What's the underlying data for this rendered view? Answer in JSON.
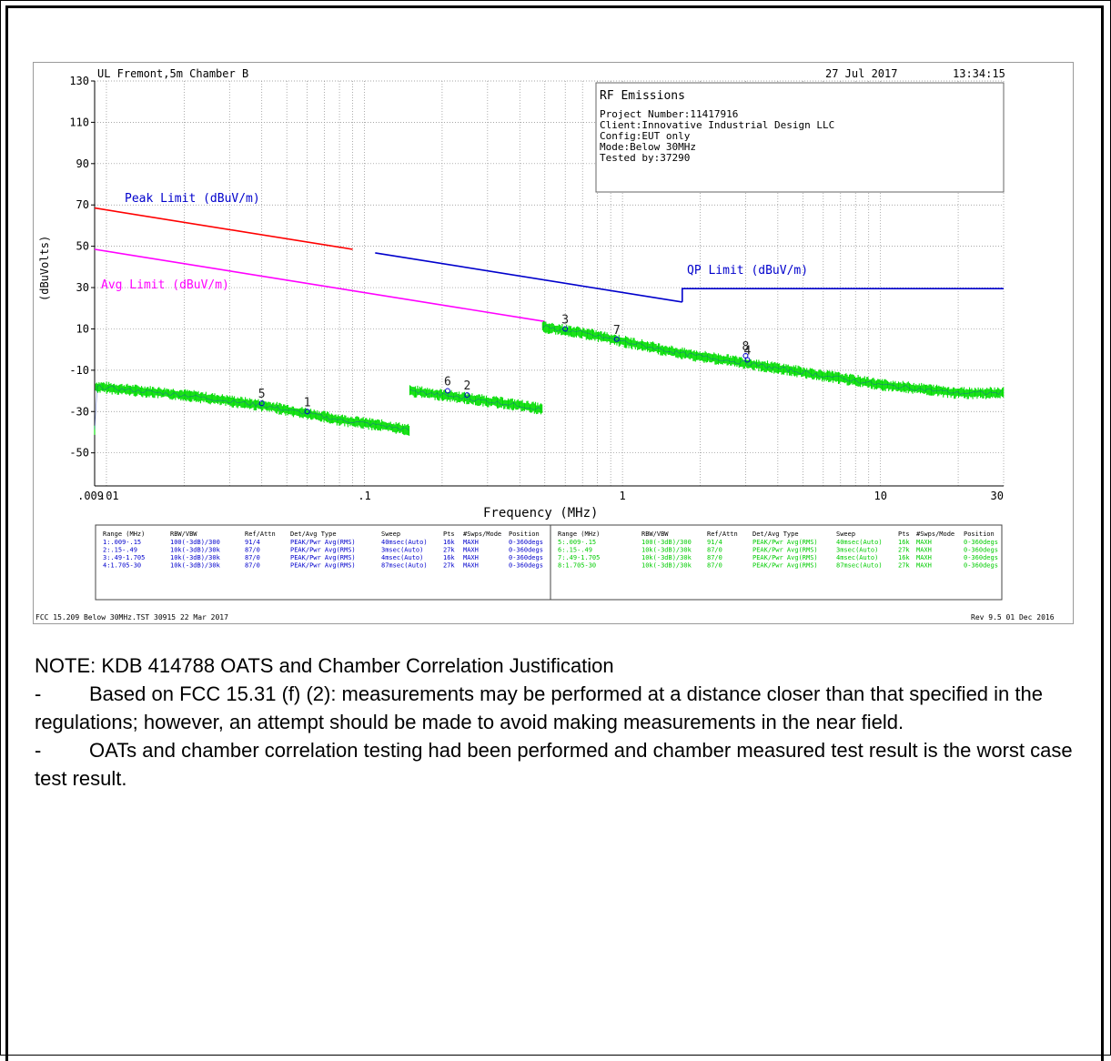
{
  "header": {
    "site": "UL Fremont,5m Chamber B",
    "date": "27 Jul 2017",
    "time": "13:34:15"
  },
  "info_box": {
    "title": "RF Emissions",
    "lines": [
      "Project Number:11417916",
      "Client:Innovative Industrial Design LLC",
      "Config:EUT only",
      "Mode:Below 30MHz",
      "Tested by:37290"
    ]
  },
  "footer": {
    "left": "FCC 15.209 Below 30MHz.TST 30915 22 Mar 2017",
    "right": "Rev 9.5 01 Dec 2016"
  },
  "chart_data": {
    "type": "line",
    "xlabel": "Frequency (MHz)",
    "ylabel": "(dBuVolts)",
    "x_scale": "log",
    "xlim": [
      0.009,
      30
    ],
    "ylim": [
      -66,
      130
    ],
    "grid": true,
    "x_ticks": [
      {
        "value": 0.009,
        "label": ".009"
      },
      {
        "value": 0.01,
        "label": ".01"
      },
      {
        "value": 0.1,
        "label": ".1"
      },
      {
        "value": 1,
        "label": "1"
      },
      {
        "value": 10,
        "label": "10"
      },
      {
        "value": 30,
        "label": "30"
      }
    ],
    "y_ticks": [
      130,
      110,
      90,
      70,
      50,
      30,
      10,
      -10,
      -30,
      -50
    ],
    "limit_lines": [
      {
        "name": "Peak Limit (dBuV/m)",
        "color": "#ff0000",
        "x": [
          0.009,
          0.09
        ],
        "y": [
          68.5,
          48.5
        ]
      },
      {
        "name": "Avg Limit (dBuV/m)",
        "color": "#ff00ff",
        "x": [
          0.009,
          0.5
        ],
        "y": [
          48.5,
          13.6
        ]
      },
      {
        "name": "",
        "color": "#0000cc",
        "x": [
          0.11,
          1.705
        ],
        "y": [
          46.8,
          23.0
        ]
      },
      {
        "name": "QP Limit (dBuV/m)",
        "color": "#0000cc",
        "x": [
          1.705,
          1.705,
          30
        ],
        "y": [
          23.0,
          29.5,
          29.5
        ]
      }
    ],
    "traces": [
      {
        "color": "#00dd00",
        "x": [
          0.009,
          0.02,
          0.04,
          0.06,
          0.08,
          0.12,
          0.15
        ],
        "y": [
          -18,
          -22,
          -27,
          -31,
          -34,
          -37,
          -39
        ]
      },
      {
        "color": "#00dd00",
        "x": [
          0.15,
          0.2,
          0.3,
          0.4,
          0.49
        ],
        "y": [
          -20,
          -22,
          -25,
          -27,
          -29
        ]
      },
      {
        "color": "#00dd00",
        "x": [
          0.49,
          0.7,
          1,
          1.705,
          2.5,
          5,
          10,
          20,
          30
        ],
        "y": [
          11,
          8,
          4,
          -2,
          -5,
          -11,
          -17,
          -21,
          -21
        ]
      }
    ],
    "markers": [
      {
        "label": "5",
        "x": 0.04,
        "y": -26
      },
      {
        "label": "1",
        "x": 0.06,
        "y": -30
      },
      {
        "label": "6",
        "x": 0.21,
        "y": -20
      },
      {
        "label": "2",
        "x": 0.25,
        "y": -22
      },
      {
        "label": "3",
        "x": 0.6,
        "y": 10
      },
      {
        "label": "7",
        "x": 0.95,
        "y": 5
      },
      {
        "label": "8",
        "x": 3.0,
        "y": -3
      },
      {
        "label": "4",
        "x": 3.05,
        "y": -5
      }
    ],
    "annotations": [
      {
        "text": "Peak Limit (dBuV/m)",
        "color": "#0000cc"
      },
      {
        "text": "Avg Limit (dBuV/m)",
        "color": "#ff00ff"
      },
      {
        "text": "QP Limit (dBuV/m)",
        "color": "#0000cc"
      }
    ]
  },
  "settings_table": {
    "headers": [
      "Range (MHz)",
      "RBW/VBW",
      "Ref/Attn",
      "Det/Avg Type",
      "Sweep",
      "Pts",
      "#Swps/Mode",
      "Position"
    ],
    "left_rows": [
      [
        "1:.009-.15",
        "100(-3dB)/300",
        "91/4",
        "PEAK/Pwr Avg(RMS)",
        "40msec(Auto)",
        "16k",
        "MAXH",
        "0-360degs"
      ],
      [
        "2:.15-.49",
        "10k(-3dB)/30k",
        "87/0",
        "PEAK/Pwr Avg(RMS)",
        "3msec(Auto)",
        "27k",
        "MAXH",
        "0-360degs"
      ],
      [
        "3:.49-1.705",
        "10k(-3dB)/30k",
        "87/0",
        "PEAK/Pwr Avg(RMS)",
        "4msec(Auto)",
        "16k",
        "MAXH",
        "0-360degs"
      ],
      [
        "4:1.705-30",
        "10k(-3dB)/30k",
        "87/0",
        "PEAK/Pwr Avg(RMS)",
        "87msec(Auto)",
        "27k",
        "MAXH",
        "0-360degs"
      ]
    ],
    "right_rows": [
      [
        "5:.009-.15",
        "100(-3dB)/300",
        "91/4",
        "PEAK/Pwr Avg(RMS)",
        "40msec(Auto)",
        "16k",
        "MAXH",
        "0-360degs"
      ],
      [
        "6:.15-.49",
        "10k(-3dB)/30k",
        "87/0",
        "PEAK/Pwr Avg(RMS)",
        "3msec(Auto)",
        "27k",
        "MAXH",
        "0-360degs"
      ],
      [
        "7:.49-1.705",
        "10k(-3dB)/30k",
        "87/0",
        "PEAK/Pwr Avg(RMS)",
        "4msec(Auto)",
        "16k",
        "MAXH",
        "0-360degs"
      ],
      [
        "8:1.705-30",
        "10k(-3dB)/30k",
        "87/0",
        "PEAK/Pwr Avg(RMS)",
        "87msec(Auto)",
        "27k",
        "MAXH",
        "0-360degs"
      ]
    ],
    "left_color": "#0000cc",
    "right_color": "#00cc00"
  },
  "note": {
    "title": "NOTE: KDB 414788 OATS and Chamber Correlation Justification",
    "bullet_mark": "-",
    "bullets": [
      "Based on FCC 15.31 (f) (2): measurements may be performed at a distance closer than that specified in the regulations; however, an attempt should be made to avoid making measurements in the near field.",
      "OATs and chamber correlation testing had been performed and chamber measured test result is the worst case test result."
    ]
  }
}
